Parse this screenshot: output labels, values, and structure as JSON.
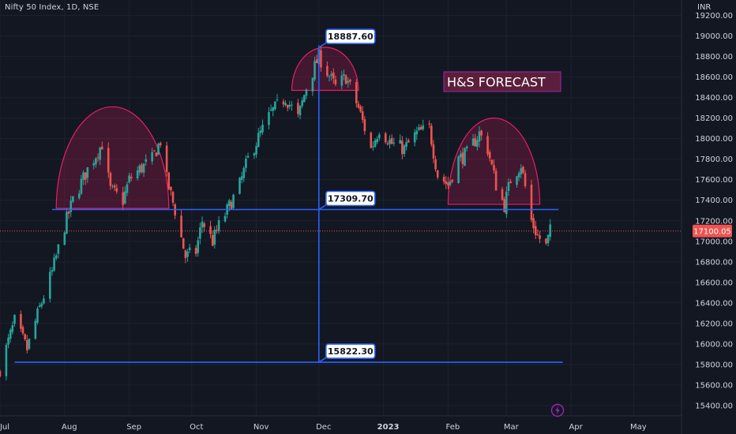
{
  "header": {
    "symbol_title": "Nifty 50 Index, 1D, NSE",
    "currency": "INR"
  },
  "icons": {
    "lightning": "lightning-icon"
  },
  "colors": {
    "background": "#131722",
    "up": "#26a69a",
    "down": "#ef5350",
    "line": "#2962ff",
    "pattern": "#e91e63",
    "text": "#d1d4dc",
    "grid": "#1e222d"
  },
  "chart_data": {
    "type": "candlestick",
    "title": "Nifty 50 Index, 1D, NSE",
    "ylim": [
      15300,
      19350
    ],
    "y_ticks": [
      19200,
      19000,
      18800,
      18600,
      18400,
      18200,
      18000,
      17800,
      17600,
      17400,
      17200,
      17000,
      16800,
      16600,
      16400,
      16200,
      16000,
      15800,
      15600,
      15400
    ],
    "y_tick_labels": [
      "19200.00",
      "19000.00",
      "18800.00",
      "18600.00",
      "18400.00",
      "18200.00",
      "18000.00",
      "17800.00",
      "17600.00",
      "17400.00",
      "17200.00",
      "17000.00",
      "16800.00",
      "16600.00",
      "16400.00",
      "16200.00",
      "16000.00",
      "15800.00",
      "15600.00",
      "15400.00"
    ],
    "x_labels": [
      {
        "label": "Jul",
        "date": "2022-07-01"
      },
      {
        "label": "Aug",
        "date": "2022-08-01"
      },
      {
        "label": "Sep",
        "date": "2022-09-01"
      },
      {
        "label": "Oct",
        "date": "2022-10-01"
      },
      {
        "label": "Nov",
        "date": "2022-11-01"
      },
      {
        "label": "Dec",
        "date": "2022-12-01"
      },
      {
        "label": "2023",
        "date": "2023-01-01"
      },
      {
        "label": "Feb",
        "date": "2023-02-01"
      },
      {
        "label": "Mar",
        "date": "2023-03-01"
      },
      {
        "label": "Apr",
        "date": "2023-04-01"
      },
      {
        "label": "May",
        "date": "2023-05-01"
      }
    ],
    "x_range": [
      "2022-07-01",
      "2023-05-24"
    ],
    "last_price": {
      "value": 17100.05,
      "label": "17100.05"
    },
    "levels": [
      {
        "label": "18887.60",
        "value": 18887.6,
        "date": "2022-12-01"
      },
      {
        "label": "17309.70",
        "value": 17309.7,
        "date": "2022-12-01"
      },
      {
        "label": "15822.30",
        "value": 15822.3,
        "date": "2022-12-01"
      }
    ],
    "neckline": {
      "value": 17309.7,
      "from": "2022-07-26",
      "to": "2023-03-26"
    },
    "target_line": {
      "value": 15822.3,
      "from": "2022-07-08",
      "to": "2023-03-28"
    },
    "forecast_label": "H&S FORECAST",
    "arcs": [
      {
        "from": "2022-07-28",
        "to": "2022-09-20",
        "peak": 18310,
        "base": 17320
      },
      {
        "from": "2022-11-18",
        "to": "2022-12-20",
        "peak": 18890,
        "base": 18470
      },
      {
        "from": "2023-02-01",
        "to": "2023-03-17",
        "peak": 18200,
        "base": 17360
      }
    ],
    "waypoints": [
      [
        "2022-07-01",
        15760
      ],
      [
        "2022-07-08",
        16220
      ],
      [
        "2022-07-14",
        15950
      ],
      [
        "2022-07-20",
        16350
      ],
      [
        "2022-07-26",
        16700
      ],
      [
        "2022-08-01",
        17150
      ],
      [
        "2022-08-05",
        17400
      ],
      [
        "2022-08-12",
        17700
      ],
      [
        "2022-08-19",
        17950
      ],
      [
        "2022-08-23",
        17500
      ],
      [
        "2022-08-29",
        17400
      ],
      [
        "2022-09-01",
        17600
      ],
      [
        "2022-09-06",
        17700
      ],
      [
        "2022-09-12",
        17800
      ],
      [
        "2022-09-16",
        17980
      ],
      [
        "2022-09-19",
        17600
      ],
      [
        "2022-09-23",
        17300
      ],
      [
        "2022-09-28",
        16850
      ],
      [
        "2022-10-03",
        16900
      ],
      [
        "2022-10-06",
        17200
      ],
      [
        "2022-10-11",
        17000
      ],
      [
        "2022-10-14",
        17150
      ],
      [
        "2022-10-18",
        17300
      ],
      [
        "2022-10-24",
        17550
      ],
      [
        "2022-10-28",
        17800
      ],
      [
        "2022-11-03",
        18050
      ],
      [
        "2022-11-08",
        18250
      ],
      [
        "2022-11-15",
        18400
      ],
      [
        "2022-11-21",
        18200
      ],
      [
        "2022-11-25",
        18500
      ],
      [
        "2022-12-01",
        18800
      ],
      [
        "2022-12-05",
        18650
      ],
      [
        "2022-12-09",
        18500
      ],
      [
        "2022-12-14",
        18600
      ],
      [
        "2022-12-20",
        18300
      ],
      [
        "2022-12-26",
        17900
      ],
      [
        "2022-12-30",
        18100
      ],
      [
        "2023-01-05",
        17950
      ],
      [
        "2023-01-11",
        17900
      ],
      [
        "2023-01-17",
        18050
      ],
      [
        "2023-01-23",
        18100
      ],
      [
        "2023-01-27",
        17650
      ],
      [
        "2023-02-01",
        17550
      ],
      [
        "2023-02-06",
        17800
      ],
      [
        "2023-02-10",
        17850
      ],
      [
        "2023-02-16",
        18050
      ],
      [
        "2023-02-20",
        17900
      ],
      [
        "2023-02-24",
        17550
      ],
      [
        "2023-02-28",
        17350
      ],
      [
        "2023-03-03",
        17600
      ],
      [
        "2023-03-08",
        17750
      ],
      [
        "2023-03-13",
        17200
      ],
      [
        "2023-03-16",
        17050
      ],
      [
        "2023-03-20",
        16950
      ],
      [
        "2023-03-22",
        17100
      ]
    ]
  }
}
